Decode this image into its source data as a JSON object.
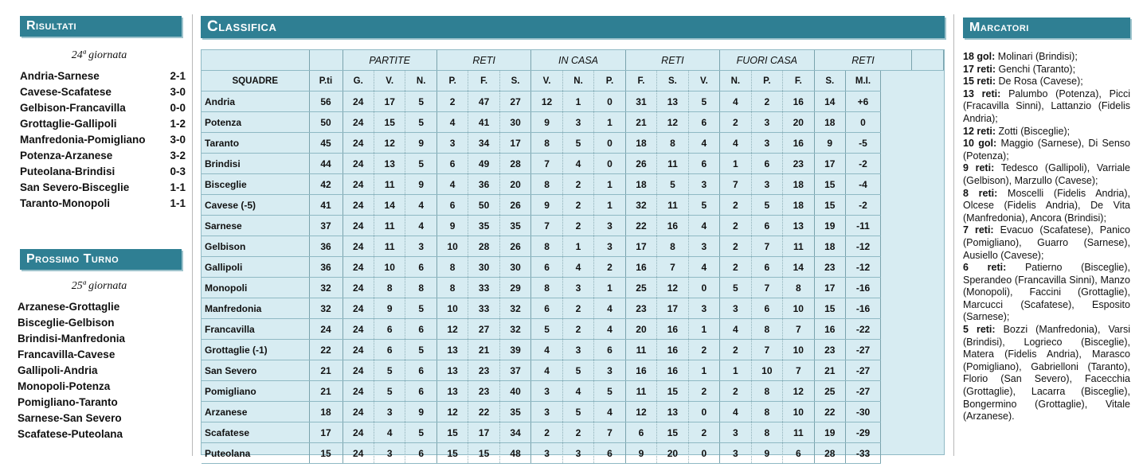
{
  "risultati": {
    "title": "Risultati",
    "giornata": "24ª giornata",
    "matches": [
      {
        "match": "Andria-Sarnese",
        "score": "2-1"
      },
      {
        "match": "Cavese-Scafatese",
        "score": "3-0"
      },
      {
        "match": "Gelbison-Francavilla",
        "score": "0-0"
      },
      {
        "match": "Grottaglie-Gallipoli",
        "score": "1-2"
      },
      {
        "match": "Manfredonia-Pomigliano",
        "score": "3-0"
      },
      {
        "match": "Potenza-Arzanese",
        "score": "3-2"
      },
      {
        "match": "Puteolana-Brindisi",
        "score": "0-3"
      },
      {
        "match": "San Severo-Bisceglie",
        "score": "1-1"
      },
      {
        "match": "Taranto-Monopoli",
        "score": "1-1"
      }
    ]
  },
  "prossimo_turno": {
    "title": "Prossimo Turno",
    "giornata": "25ª giornata",
    "matches": [
      "Arzanese-Grottaglie",
      "Bisceglie-Gelbison",
      "Brindisi-Manfredonia",
      "Francavilla-Cavese",
      "Gallipoli-Andria",
      "Monopoli-Potenza",
      "Pomigliano-Taranto",
      "Sarnese-San Severo",
      "Scafatese-Puteolana"
    ]
  },
  "classifica": {
    "title": "Classifica",
    "groups": [
      "PARTITE",
      "RETI",
      "IN CASA",
      "RETI",
      "FUORI CASA",
      "RETI"
    ],
    "headers": [
      "SQUADRE",
      "P.ti",
      "G.",
      "V.",
      "N.",
      "P.",
      "F.",
      "S.",
      "V.",
      "N.",
      "P.",
      "F.",
      "S.",
      "V.",
      "N.",
      "P.",
      "F.",
      "S.",
      "M.I."
    ],
    "rows": [
      [
        "Andria",
        "56",
        "24",
        "17",
        "5",
        "2",
        "47",
        "27",
        "12",
        "1",
        "0",
        "31",
        "13",
        "5",
        "4",
        "2",
        "16",
        "14",
        "+6"
      ],
      [
        "Potenza",
        "50",
        "24",
        "15",
        "5",
        "4",
        "41",
        "30",
        "9",
        "3",
        "1",
        "21",
        "12",
        "6",
        "2",
        "3",
        "20",
        "18",
        "0"
      ],
      [
        "Taranto",
        "45",
        "24",
        "12",
        "9",
        "3",
        "34",
        "17",
        "8",
        "5",
        "0",
        "18",
        "8",
        "4",
        "4",
        "3",
        "16",
        "9",
        "-5"
      ],
      [
        "Brindisi",
        "44",
        "24",
        "13",
        "5",
        "6",
        "49",
        "28",
        "7",
        "4",
        "0",
        "26",
        "11",
        "6",
        "1",
        "6",
        "23",
        "17",
        "-2"
      ],
      [
        "Bisceglie",
        "42",
        "24",
        "11",
        "9",
        "4",
        "36",
        "20",
        "8",
        "2",
        "1",
        "18",
        "5",
        "3",
        "7",
        "3",
        "18",
        "15",
        "-4"
      ],
      [
        "Cavese (-5)",
        "41",
        "24",
        "14",
        "4",
        "6",
        "50",
        "26",
        "9",
        "2",
        "1",
        "32",
        "11",
        "5",
        "2",
        "5",
        "18",
        "15",
        "-2"
      ],
      [
        "Sarnese",
        "37",
        "24",
        "11",
        "4",
        "9",
        "35",
        "35",
        "7",
        "2",
        "3",
        "22",
        "16",
        "4",
        "2",
        "6",
        "13",
        "19",
        "-11"
      ],
      [
        "Gelbison",
        "36",
        "24",
        "11",
        "3",
        "10",
        "28",
        "26",
        "8",
        "1",
        "3",
        "17",
        "8",
        "3",
        "2",
        "7",
        "11",
        "18",
        "-12"
      ],
      [
        "Gallipoli",
        "36",
        "24",
        "10",
        "6",
        "8",
        "30",
        "30",
        "6",
        "4",
        "2",
        "16",
        "7",
        "4",
        "2",
        "6",
        "14",
        "23",
        "-12"
      ],
      [
        "Monopoli",
        "32",
        "24",
        "8",
        "8",
        "8",
        "33",
        "29",
        "8",
        "3",
        "1",
        "25",
        "12",
        "0",
        "5",
        "7",
        "8",
        "17",
        "-16"
      ],
      [
        "Manfredonia",
        "32",
        "24",
        "9",
        "5",
        "10",
        "33",
        "32",
        "6",
        "2",
        "4",
        "23",
        "17",
        "3",
        "3",
        "6",
        "10",
        "15",
        "-16"
      ],
      [
        "Francavilla",
        "24",
        "24",
        "6",
        "6",
        "12",
        "27",
        "32",
        "5",
        "2",
        "4",
        "20",
        "16",
        "1",
        "4",
        "8",
        "7",
        "16",
        "-22"
      ],
      [
        "Grottaglie (-1)",
        "22",
        "24",
        "6",
        "5",
        "13",
        "21",
        "39",
        "4",
        "3",
        "6",
        "11",
        "16",
        "2",
        "2",
        "7",
        "10",
        "23",
        "-27"
      ],
      [
        "San Severo",
        "21",
        "24",
        "5",
        "6",
        "13",
        "23",
        "37",
        "4",
        "5",
        "3",
        "16",
        "16",
        "1",
        "1",
        "10",
        "7",
        "21",
        "-27"
      ],
      [
        "Pomigliano",
        "21",
        "24",
        "5",
        "6",
        "13",
        "23",
        "40",
        "3",
        "4",
        "5",
        "11",
        "15",
        "2",
        "2",
        "8",
        "12",
        "25",
        "-27"
      ],
      [
        "Arzanese",
        "18",
        "24",
        "3",
        "9",
        "12",
        "22",
        "35",
        "3",
        "5",
        "4",
        "12",
        "13",
        "0",
        "4",
        "8",
        "10",
        "22",
        "-30"
      ],
      [
        "Scafatese",
        "17",
        "24",
        "4",
        "5",
        "15",
        "17",
        "34",
        "2",
        "2",
        "7",
        "6",
        "15",
        "2",
        "3",
        "8",
        "11",
        "19",
        "-29"
      ],
      [
        "Puteolana",
        "15",
        "24",
        "3",
        "6",
        "15",
        "15",
        "48",
        "3",
        "3",
        "6",
        "9",
        "20",
        "0",
        "3",
        "9",
        "6",
        "28",
        "-33"
      ]
    ]
  },
  "marcatori": {
    "title": "Marcatori",
    "entries": [
      {
        "goals": "18 gol:",
        "names": "Molinari (Brindisi);"
      },
      {
        "goals": "17 reti:",
        "names": "Genchi (Taranto);"
      },
      {
        "goals": "15 reti:",
        "names": "De Rosa (Cavese);"
      },
      {
        "goals": "13 reti:",
        "names": "Palumbo (Potenza), Picci (Fracavilla Sinni), Lattanzio (Fidelis Andria);"
      },
      {
        "goals": "12 reti:",
        "names": "Zotti (Bisceglie);"
      },
      {
        "goals": "10 gol:",
        "names": "Maggio (Sarnese), Di Senso (Potenza);"
      },
      {
        "goals": "9 reti:",
        "names": "Tedesco (Gallipoli), Varriale (Gelbison), Marzullo (Cavese);"
      },
      {
        "goals": "8 reti:",
        "names": "Moscelli (Fidelis Andria), Olcese (Fidelis Andria), De Vita (Manfredonia), Ancora (Brindisi);"
      },
      {
        "goals": "7 reti:",
        "names": "Evacuo (Scafatese), Panico (Pomigliano), Guarro (Sarnese), Ausiello (Cavese);"
      },
      {
        "goals": "6 reti:",
        "names": "Patierno (Bisceglie), Sperandeo (Francavilla Sinni), Manzo (Monopoli), Faccini (Grottaglie), Marcucci (Scafatese), Esposito (Sarnese);"
      },
      {
        "goals": "5 reti:",
        "names": "Bozzi (Manfredonia), Varsi (Brindisi), Logrieco (Bisceglie), Matera (Fidelis Andria), Marasco (Pomigliano), Gabrielloni (Taranto), Florio (San Severo), Facecchia (Grottaglie), Lacarra (Bisceglie), Bongermino (Grottaglie), Vitale (Arzanese)."
      }
    ]
  },
  "colors": {
    "banner": "#2f7f93",
    "table_bg": "#d7ecf2"
  }
}
